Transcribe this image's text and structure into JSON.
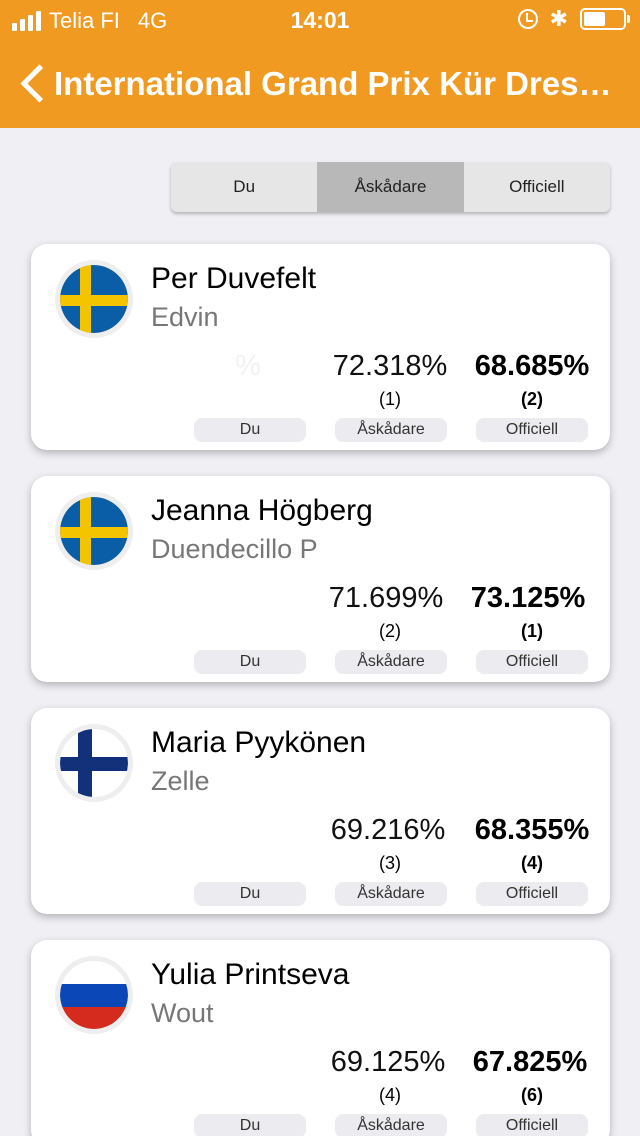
{
  "status_bar": {
    "carrier": "Telia FI",
    "network": "4G",
    "time": "14:01",
    "bluetooth_glyph": "✱",
    "battery_level": 0.55
  },
  "nav": {
    "title": "International Grand Prix Kür Dressyr"
  },
  "segmented": {
    "options": [
      "Du",
      "Åskådare",
      "Officiell"
    ],
    "selected_index": 1
  },
  "colors": {
    "header": "#f09a22",
    "background": "#efeff4"
  },
  "labels": {
    "du": "Du",
    "spectator": "Åskådare",
    "official": "Officiell"
  },
  "entries": [
    {
      "rider": "Per Duvefelt",
      "horse": "Edvin",
      "country_flag": "sweden-flag",
      "du_score": "%",
      "spectator_score": "72.318%",
      "spectator_rank": "(1)",
      "official_score": "68.685%",
      "official_rank": "(2)"
    },
    {
      "rider": "Jeanna Högberg",
      "horse": "Duendecillo P",
      "country_flag": "sweden-flag",
      "du_score": "",
      "spectator_score": "71.699%",
      "spectator_rank": "(2)",
      "official_score": "73.125%",
      "official_rank": "(1)"
    },
    {
      "rider": "Maria Pyykönen",
      "horse": "Zelle",
      "country_flag": "finland-flag",
      "du_score": "",
      "spectator_score": "69.216%",
      "spectator_rank": "(3)",
      "official_score": "68.355%",
      "official_rank": "(4)"
    },
    {
      "rider": "Yulia Printseva",
      "horse": "Wout",
      "country_flag": "russia-flag",
      "du_score": "",
      "spectator_score": "69.125%",
      "spectator_rank": "(4)",
      "official_score": "67.825%",
      "official_rank": "(6)"
    }
  ]
}
